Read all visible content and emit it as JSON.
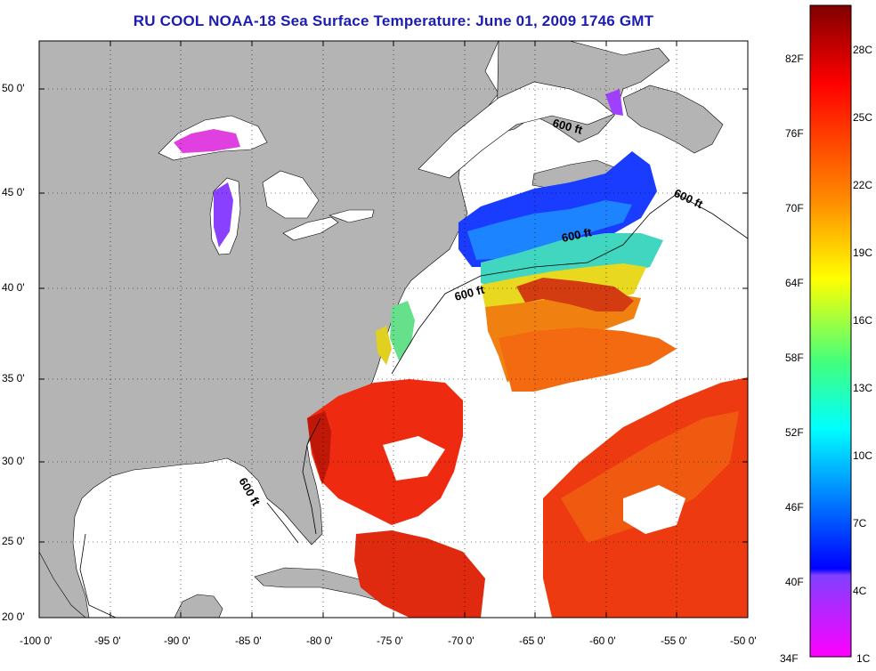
{
  "title": "RU COOL  NOAA-18  Sea Surface Temperature:  June 01, 2009 1746 GMT",
  "map": {
    "lon_range": [
      -100,
      -50
    ],
    "lat_range": [
      20,
      52.5
    ],
    "lon_ticks": [
      "-100 0'",
      "-95 0'",
      "-90 0'",
      "-85 0'",
      "-80 0'",
      "-75 0'",
      "-70 0'",
      "-65 0'",
      "-60 0'",
      "-55 0'",
      "-50 0'"
    ],
    "lat_ticks": [
      "20 0'",
      "25 0'",
      "30 0'",
      "35 0'",
      "40 0'",
      "45 0'",
      "50 0'"
    ],
    "land_color": "#b4b4b4",
    "ocean_nodata_color": "#ffffff",
    "grid": "dotted",
    "contour_labels": [
      "600 ft",
      "600 ft",
      "600 ft",
      "600 ft",
      "600 ft"
    ]
  },
  "colorbar": {
    "range_celsius": [
      1,
      30
    ],
    "celsius_labels": [
      "28C",
      "25C",
      "22C",
      "19C",
      "16C",
      "13C",
      "10C",
      "7C",
      "4C",
      "1C"
    ],
    "fahrenheit_labels": [
      "82F",
      "76F",
      "70F",
      "64F",
      "58F",
      "52F",
      "46F",
      "40F",
      "34F"
    ],
    "colors": [
      "#8b0000",
      "#ff0000",
      "#ff8000",
      "#ffff00",
      "#00ffff",
      "#0000ff",
      "#9933ff",
      "#ff33ff"
    ]
  }
}
